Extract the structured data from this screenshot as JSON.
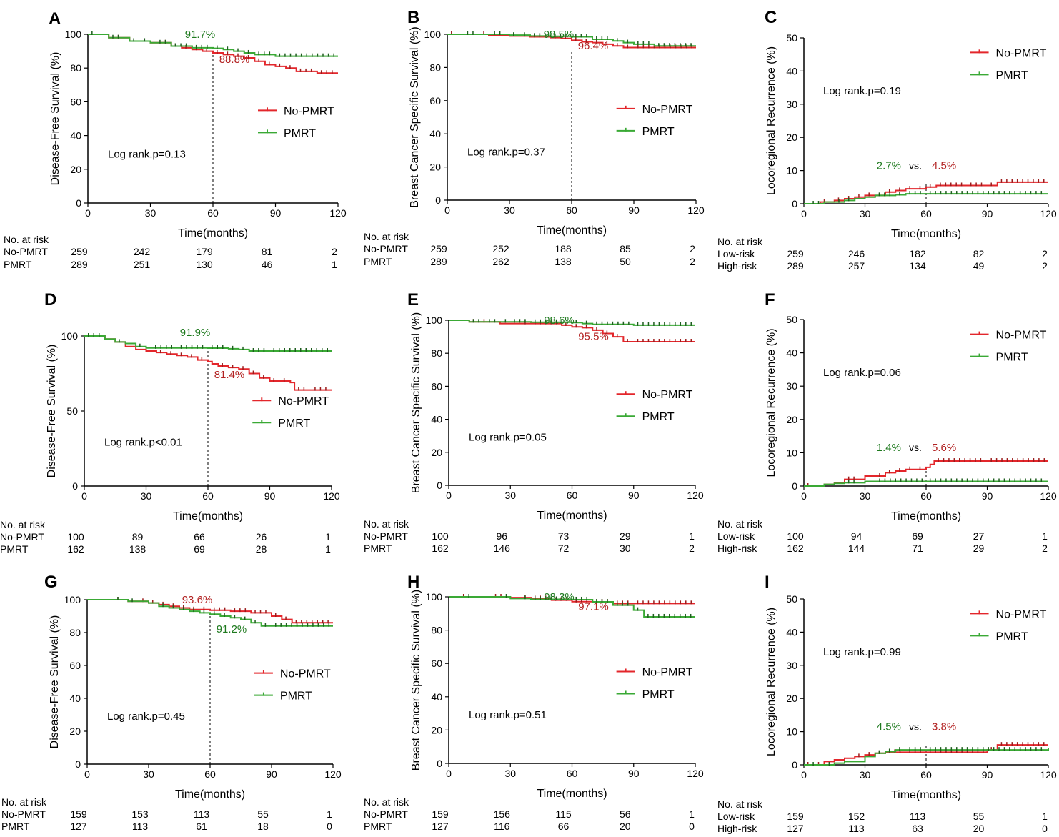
{
  "figure": {
    "colors": {
      "no_pmrt": "#e3262b",
      "pmrt": "#3aa935",
      "annot_red": "#b22222",
      "annot_green": "#1f7a1f",
      "axis": "#000000"
    },
    "time_label": "Time(months)",
    "at_risk_title": "No. at risk",
    "vs_label": "vs.",
    "legend_labels": [
      "No-PMRT",
      "PMRT"
    ]
  },
  "chart_data": [
    {
      "panel": "A",
      "type": "line",
      "ylabel": "Disease-Free Survival (%)",
      "xlabel": "Time(months)",
      "xlim": [
        0,
        120
      ],
      "ylim": [
        0,
        100
      ],
      "xticks": [
        0,
        30,
        60,
        90,
        120
      ],
      "yticks": [
        0,
        20,
        40,
        60,
        80,
        100
      ],
      "logrank": "Log rank.p=0.13",
      "annotations": [
        {
          "text": "91.7%",
          "series": "PMRT",
          "position": "above"
        },
        {
          "text": "88.8%",
          "series": "No-PMRT",
          "position": "below"
        }
      ],
      "series": [
        {
          "name": "No-PMRT",
          "x": [
            0,
            10,
            20,
            30,
            40,
            45,
            50,
            55,
            60,
            65,
            70,
            75,
            80,
            85,
            90,
            95,
            100,
            110,
            120
          ],
          "y": [
            100,
            98,
            96,
            95,
            93,
            92,
            91,
            90,
            89,
            88,
            87,
            86,
            84,
            82,
            81,
            80,
            78,
            77,
            77
          ]
        },
        {
          "name": "PMRT",
          "x": [
            0,
            10,
            20,
            30,
            40,
            50,
            60,
            65,
            70,
            75,
            80,
            90,
            120
          ],
          "y": [
            100,
            98,
            96,
            95,
            93,
            92,
            91.7,
            91,
            90,
            89,
            88,
            87,
            87
          ]
        }
      ],
      "at_risk": {
        "row_labels": [
          "No-PMRT",
          "PMRT"
        ],
        "rows": [
          [
            "259",
            "242",
            "179",
            "81",
            "2"
          ],
          [
            "289",
            "251",
            "130",
            "46",
            "1"
          ]
        ]
      }
    },
    {
      "panel": "B",
      "type": "line",
      "ylabel": "Breast Cancer Specific Survival (%)",
      "xlabel": "Time(months)",
      "xlim": [
        0,
        120
      ],
      "ylim": [
        0,
        100
      ],
      "xticks": [
        0,
        30,
        60,
        90,
        120
      ],
      "yticks": [
        0,
        20,
        40,
        60,
        80,
        100
      ],
      "logrank": "Log rank.p=0.37",
      "annotations": [
        {
          "text": "98.5%",
          "series": "PMRT",
          "position": "above"
        },
        {
          "text": "96.4%",
          "series": "No-PMRT",
          "position": "below"
        }
      ],
      "series": [
        {
          "name": "No-PMRT",
          "x": [
            0,
            20,
            30,
            40,
            50,
            55,
            60,
            65,
            70,
            75,
            80,
            85,
            90,
            120
          ],
          "y": [
            100,
            99.5,
            99,
            98.5,
            98,
            97.5,
            96.4,
            95.5,
            95,
            94,
            93,
            92,
            92,
            92
          ]
        },
        {
          "name": "PMRT",
          "x": [
            0,
            30,
            40,
            50,
            60,
            70,
            80,
            85,
            90,
            100,
            120
          ],
          "y": [
            100,
            99.5,
            99,
            98.8,
            98.5,
            97,
            96,
            95,
            94,
            93,
            93
          ]
        }
      ],
      "at_risk": {
        "row_labels": [
          "No-PMRT",
          "PMRT"
        ],
        "rows": [
          [
            "259",
            "252",
            "188",
            "85",
            "2"
          ],
          [
            "289",
            "262",
            "138",
            "50",
            "2"
          ]
        ]
      }
    },
    {
      "panel": "C",
      "type": "line",
      "ylabel": "Locoregional Recurrence (%)",
      "xlabel": "Time(months)",
      "xlim": [
        0,
        120
      ],
      "ylim": [
        0,
        50
      ],
      "xticks": [
        0,
        30,
        60,
        90,
        120
      ],
      "yticks": [
        0,
        10,
        20,
        30,
        40,
        50
      ],
      "logrank": "Log rank.p=0.19",
      "vs_annotation": {
        "left": "2.7%",
        "right": "4.5%"
      },
      "series": [
        {
          "name": "No-PMRT",
          "x": [
            0,
            8,
            15,
            20,
            25,
            30,
            40,
            45,
            50,
            55,
            60,
            65,
            80,
            90,
            95,
            120
          ],
          "y": [
            0,
            0.5,
            1,
            1.5,
            2,
            2.5,
            3.5,
            4,
            4.5,
            4.5,
            5,
            5.5,
            5.5,
            5.5,
            6.5,
            6.5
          ]
        },
        {
          "name": "PMRT",
          "x": [
            0,
            10,
            20,
            25,
            30,
            35,
            45,
            50,
            60,
            120
          ],
          "y": [
            0,
            0.5,
            1,
            1.5,
            2,
            2.5,
            2.7,
            3,
            3,
            3
          ]
        }
      ],
      "at_risk": {
        "row_labels": [
          "Low-risk",
          "High-risk"
        ],
        "rows": [
          [
            "259",
            "246",
            "182",
            "82",
            "2"
          ],
          [
            "289",
            "257",
            "134",
            "49",
            "2"
          ]
        ]
      }
    },
    {
      "panel": "D",
      "type": "line",
      "ylabel": "Disease-Free Survival (%)",
      "xlabel": "Time(months)",
      "xlim": [
        0,
        120
      ],
      "ylim": [
        0,
        100
      ],
      "xticks": [
        0,
        30,
        60,
        90,
        120
      ],
      "yticks": [
        0,
        50,
        100
      ],
      "logrank": "Log rank.p<0.01",
      "annotations": [
        {
          "text": "91.9%",
          "series": "PMRT",
          "position": "above"
        },
        {
          "text": "81.4%",
          "series": "No-PMRT",
          "position": "below"
        }
      ],
      "series": [
        {
          "name": "No-PMRT",
          "x": [
            0,
            10,
            15,
            20,
            25,
            30,
            35,
            40,
            45,
            50,
            55,
            60,
            62,
            65,
            70,
            75,
            80,
            85,
            90,
            95,
            100,
            102,
            110,
            120
          ],
          "y": [
            100,
            98,
            96,
            93,
            91,
            90,
            89,
            88,
            87,
            86,
            84,
            83,
            81.4,
            80,
            79,
            78,
            75,
            72,
            70,
            70,
            69,
            64,
            64,
            64
          ]
        },
        {
          "name": "PMRT",
          "x": [
            0,
            10,
            15,
            20,
            25,
            30,
            45,
            60,
            70,
            75,
            80,
            90,
            120
          ],
          "y": [
            100,
            98,
            96,
            95,
            93,
            92,
            92,
            91.9,
            91.5,
            91,
            90,
            90,
            90
          ]
        }
      ],
      "at_risk": {
        "row_labels": [
          "No-PMRT",
          "PMRT"
        ],
        "rows": [
          [
            "100",
            "89",
            "66",
            "26",
            "1"
          ],
          [
            "162",
            "138",
            "69",
            "28",
            "1"
          ]
        ]
      }
    },
    {
      "panel": "E",
      "type": "line",
      "ylabel": "Breast Cancer Specific Survival (%)",
      "xlabel": "Time(months)",
      "xlim": [
        0,
        120
      ],
      "ylim": [
        0,
        100
      ],
      "xticks": [
        0,
        30,
        60,
        90,
        120
      ],
      "yticks": [
        0,
        20,
        40,
        60,
        80,
        100
      ],
      "logrank": "Log rank.p=0.05",
      "annotations": [
        {
          "text": "98.6%",
          "series": "PMRT",
          "position": "above"
        },
        {
          "text": "95.5%",
          "series": "No-PMRT",
          "position": "below"
        }
      ],
      "series": [
        {
          "name": "No-PMRT",
          "x": [
            0,
            10,
            25,
            30,
            40,
            55,
            60,
            65,
            70,
            75,
            80,
            85,
            90,
            120
          ],
          "y": [
            100,
            99,
            98,
            98,
            98,
            97,
            96,
            95.5,
            94,
            92,
            90,
            87,
            87,
            87
          ]
        },
        {
          "name": "PMRT",
          "x": [
            0,
            10,
            30,
            40,
            60,
            65,
            70,
            90,
            120
          ],
          "y": [
            100,
            99,
            99,
            98.8,
            98.6,
            98,
            97.5,
            97,
            97
          ]
        }
      ],
      "at_risk": {
        "row_labels": [
          "No-PMRT",
          "PMRT"
        ],
        "rows": [
          [
            "100",
            "96",
            "73",
            "29",
            "1"
          ],
          [
            "162",
            "146",
            "72",
            "30",
            "2"
          ]
        ]
      }
    },
    {
      "panel": "F",
      "type": "line",
      "ylabel": "Locoregional Recurrence (%)",
      "xlabel": "Time(months)",
      "xlim": [
        0,
        120
      ],
      "ylim": [
        0,
        50
      ],
      "xticks": [
        0,
        30,
        60,
        90,
        120
      ],
      "yticks": [
        0,
        10,
        20,
        30,
        40,
        50
      ],
      "logrank": "Log rank.p=0.06",
      "vs_annotation": {
        "left": "1.4%",
        "right": "5.6%"
      },
      "series": [
        {
          "name": "No-PMRT",
          "x": [
            0,
            10,
            15,
            20,
            30,
            40,
            45,
            50,
            55,
            60,
            62,
            64,
            90,
            120
          ],
          "y": [
            0,
            0.5,
            1,
            2,
            3,
            4,
            4.5,
            5,
            5,
            5.6,
            6.5,
            7.5,
            7.5,
            7.5
          ]
        },
        {
          "name": "PMRT",
          "x": [
            0,
            10,
            15,
            20,
            30,
            60,
            120
          ],
          "y": [
            0,
            0.5,
            0.8,
            1,
            1.4,
            1.4,
            1.4
          ]
        }
      ],
      "at_risk": {
        "row_labels": [
          "Low-risk",
          "High-risk"
        ],
        "rows": [
          [
            "100",
            "94",
            "69",
            "27",
            "1"
          ],
          [
            "162",
            "144",
            "71",
            "29",
            "2"
          ]
        ]
      }
    },
    {
      "panel": "G",
      "type": "line",
      "ylabel": "Disease-Free Survival (%)",
      "xlabel": "Time(months)",
      "xlim": [
        0,
        120
      ],
      "ylim": [
        0,
        100
      ],
      "xticks": [
        0,
        30,
        60,
        90,
        120
      ],
      "yticks": [
        0,
        20,
        40,
        60,
        80,
        100
      ],
      "logrank": "Log rank.p=0.45",
      "annotations": [
        {
          "text": "93.6%",
          "series": "No-PMRT",
          "position": "above"
        },
        {
          "text": "91.2%",
          "series": "PMRT",
          "position": "below"
        }
      ],
      "series": [
        {
          "name": "No-PMRT",
          "x": [
            0,
            20,
            30,
            35,
            40,
            45,
            50,
            55,
            60,
            70,
            80,
            90,
            95,
            100,
            120
          ],
          "y": [
            100,
            99,
            98,
            97,
            96,
            95,
            94,
            94,
            93.6,
            93,
            92,
            90,
            88,
            86,
            86
          ]
        },
        {
          "name": "PMRT",
          "x": [
            0,
            20,
            30,
            35,
            40,
            45,
            50,
            55,
            60,
            65,
            70,
            75,
            80,
            85,
            90,
            120
          ],
          "y": [
            100,
            99,
            98,
            96,
            95,
            94,
            93,
            92,
            91.2,
            90,
            89,
            88,
            86,
            84,
            84,
            84
          ]
        }
      ],
      "at_risk": {
        "row_labels": [
          "No-PMRT",
          "PMRT"
        ],
        "rows": [
          [
            "159",
            "153",
            "113",
            "55",
            "1"
          ],
          [
            "127",
            "113",
            "61",
            "18",
            "0"
          ]
        ]
      }
    },
    {
      "panel": "H",
      "type": "line",
      "ylabel": "Breast Cancer Specific Survival (%)",
      "xlabel": "Time(months)",
      "xlim": [
        0,
        120
      ],
      "ylim": [
        0,
        100
      ],
      "xticks": [
        0,
        30,
        60,
        90,
        120
      ],
      "yticks": [
        0,
        20,
        40,
        60,
        80,
        100
      ],
      "logrank": "Log rank.p=0.51",
      "annotations": [
        {
          "text": "98.3%",
          "series": "PMRT",
          "position": "above"
        },
        {
          "text": "97.1%",
          "series": "No-PMRT",
          "position": "below"
        }
      ],
      "series": [
        {
          "name": "No-PMRT",
          "x": [
            0,
            30,
            40,
            50,
            60,
            70,
            80,
            90,
            120
          ],
          "y": [
            100,
            99.5,
            99,
            98,
            97.1,
            97,
            96,
            96,
            96
          ]
        },
        {
          "name": "PMRT",
          "x": [
            0,
            30,
            40,
            60,
            70,
            80,
            90,
            95,
            120
          ],
          "y": [
            100,
            99,
            98.5,
            98.3,
            97,
            95,
            92,
            88,
            88
          ]
        }
      ],
      "at_risk": {
        "row_labels": [
          "No-PMRT",
          "PMRT"
        ],
        "rows": [
          [
            "159",
            "156",
            "115",
            "56",
            "1"
          ],
          [
            "127",
            "116",
            "66",
            "20",
            "0"
          ]
        ]
      }
    },
    {
      "panel": "I",
      "type": "line",
      "ylabel": "Locoregional Recurrence (%)",
      "xlabel": "Time(months)",
      "xlim": [
        0,
        120
      ],
      "ylim": [
        0,
        50
      ],
      "xticks": [
        0,
        30,
        60,
        90,
        120
      ],
      "yticks": [
        0,
        10,
        20,
        30,
        40,
        50
      ],
      "logrank": "Log rank.p=0.99",
      "vs_annotation": {
        "left": "4.5%",
        "right": "3.8%"
      },
      "series": [
        {
          "name": "No-PMRT",
          "x": [
            0,
            10,
            15,
            20,
            25,
            30,
            35,
            40,
            50,
            60,
            90,
            95,
            120
          ],
          "y": [
            0,
            1,
            1.5,
            2,
            2.5,
            3,
            3.5,
            3.8,
            3.8,
            3.8,
            4.5,
            6,
            6
          ]
        },
        {
          "name": "PMRT",
          "x": [
            0,
            15,
            20,
            30,
            35,
            40,
            45,
            50,
            60,
            120
          ],
          "y": [
            0,
            0.5,
            1,
            2.5,
            3.5,
            4,
            4.5,
            4.5,
            4.5,
            5
          ]
        }
      ],
      "at_risk": {
        "row_labels": [
          "Low-risk",
          "High-risk"
        ],
        "rows": [
          [
            "159",
            "152",
            "113",
            "55",
            "1"
          ],
          [
            "127",
            "113",
            "63",
            "20",
            "0"
          ]
        ]
      }
    }
  ]
}
